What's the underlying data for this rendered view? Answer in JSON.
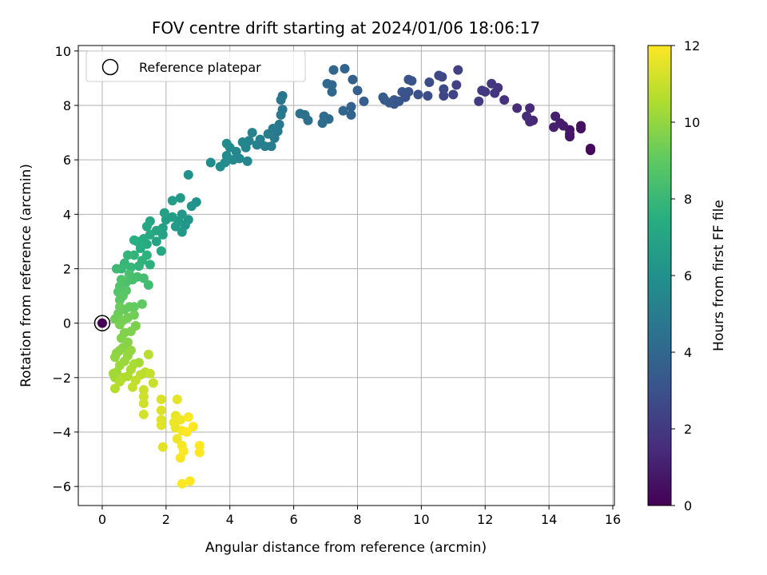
{
  "chart_data": {
    "type": "scatter",
    "title": "FOV centre drift starting at 2024/01/06 18:06:17",
    "xlabel": "Angular distance from reference (arcmin)",
    "ylabel": "Rotation from reference (arcmin)",
    "xlim": [
      -0.75,
      16.05
    ],
    "ylim": [
      -6.7,
      10.2
    ],
    "xticks": [
      0,
      2,
      4,
      6,
      8,
      10,
      12,
      14,
      16
    ],
    "yticks": [
      -6,
      -4,
      -2,
      0,
      2,
      4,
      6,
      8,
      10
    ],
    "grid": true,
    "legend": {
      "placement": "top-left",
      "entries": [
        "Reference platepar"
      ]
    },
    "reference_point": {
      "x": 0,
      "y": 0
    },
    "colorbar": {
      "label": "Hours from first FF file",
      "min": 0,
      "max": 12,
      "ticks": [
        0,
        2,
        4,
        6,
        8,
        10,
        12
      ],
      "colormap": "viridis"
    },
    "points": [
      {
        "x": 0,
        "y": 0,
        "c": 0
      },
      {
        "x": 15.3,
        "y": 6.35,
        "c": 0.2
      },
      {
        "x": 15.3,
        "y": 6.42,
        "c": 0.25
      },
      {
        "x": 15.0,
        "y": 7.25,
        "c": 0.45
      },
      {
        "x": 15.0,
        "y": 7.15,
        "c": 0.5
      },
      {
        "x": 14.65,
        "y": 7.1,
        "c": 0.6
      },
      {
        "x": 14.65,
        "y": 6.85,
        "c": 0.7
      },
      {
        "x": 14.65,
        "y": 6.95,
        "c": 0.75
      },
      {
        "x": 14.45,
        "y": 7.25,
        "c": 0.85
      },
      {
        "x": 14.35,
        "y": 7.35,
        "c": 0.9
      },
      {
        "x": 14.2,
        "y": 7.6,
        "c": 1.0
      },
      {
        "x": 14.15,
        "y": 7.2,
        "c": 1.05
      },
      {
        "x": 13.5,
        "y": 7.45,
        "c": 1.3
      },
      {
        "x": 13.4,
        "y": 7.9,
        "c": 1.35
      },
      {
        "x": 13.4,
        "y": 7.4,
        "c": 1.4
      },
      {
        "x": 13.3,
        "y": 7.6,
        "c": 1.45
      },
      {
        "x": 13.0,
        "y": 7.9,
        "c": 1.55
      },
      {
        "x": 12.6,
        "y": 8.2,
        "c": 1.7
      },
      {
        "x": 12.4,
        "y": 8.65,
        "c": 1.8
      },
      {
        "x": 12.3,
        "y": 8.45,
        "c": 1.85
      },
      {
        "x": 12.2,
        "y": 8.8,
        "c": 1.9
      },
      {
        "x": 12.0,
        "y": 8.5,
        "c": 2.0
      },
      {
        "x": 11.9,
        "y": 8.55,
        "c": 2.05
      },
      {
        "x": 11.8,
        "y": 8.15,
        "c": 2.1
      },
      {
        "x": 11.15,
        "y": 9.3,
        "c": 2.3
      },
      {
        "x": 11.1,
        "y": 8.75,
        "c": 2.35
      },
      {
        "x": 11.0,
        "y": 8.4,
        "c": 2.4
      },
      {
        "x": 10.7,
        "y": 8.35,
        "c": 2.5
      },
      {
        "x": 10.65,
        "y": 9.05,
        "c": 2.55
      },
      {
        "x": 10.55,
        "y": 9.1,
        "c": 2.6
      },
      {
        "x": 10.7,
        "y": 8.6,
        "c": 2.65
      },
      {
        "x": 10.25,
        "y": 8.85,
        "c": 2.75
      },
      {
        "x": 10.2,
        "y": 8.35,
        "c": 2.8
      },
      {
        "x": 9.9,
        "y": 8.4,
        "c": 2.9
      },
      {
        "x": 9.7,
        "y": 8.9,
        "c": 2.95
      },
      {
        "x": 9.6,
        "y": 8.95,
        "c": 3.0
      },
      {
        "x": 9.6,
        "y": 8.5,
        "c": 3.05
      },
      {
        "x": 9.5,
        "y": 8.3,
        "c": 3.1
      },
      {
        "x": 9.4,
        "y": 8.5,
        "c": 3.15
      },
      {
        "x": 9.3,
        "y": 8.15,
        "c": 3.2
      },
      {
        "x": 9.15,
        "y": 8.2,
        "c": 3.25
      },
      {
        "x": 9.15,
        "y": 8.05,
        "c": 3.3
      },
      {
        "x": 9.0,
        "y": 8.1,
        "c": 3.35
      },
      {
        "x": 8.85,
        "y": 8.2,
        "c": 3.4
      },
      {
        "x": 8.8,
        "y": 8.3,
        "c": 3.45
      },
      {
        "x": 8.2,
        "y": 8.15,
        "c": 3.6
      },
      {
        "x": 8.0,
        "y": 8.55,
        "c": 3.65
      },
      {
        "x": 7.85,
        "y": 8.95,
        "c": 3.7
      },
      {
        "x": 7.8,
        "y": 7.95,
        "c": 3.75
      },
      {
        "x": 7.8,
        "y": 7.65,
        "c": 3.8
      },
      {
        "x": 7.6,
        "y": 9.35,
        "c": 3.85
      },
      {
        "x": 7.55,
        "y": 7.8,
        "c": 3.9
      },
      {
        "x": 7.25,
        "y": 9.3,
        "c": 3.95
      },
      {
        "x": 7.2,
        "y": 8.5,
        "c": 4.0
      },
      {
        "x": 7.2,
        "y": 8.75,
        "c": 4.05
      },
      {
        "x": 7.05,
        "y": 8.8,
        "c": 4.1
      },
      {
        "x": 7.1,
        "y": 7.5,
        "c": 4.15
      },
      {
        "x": 6.95,
        "y": 7.6,
        "c": 4.2
      },
      {
        "x": 6.9,
        "y": 7.35,
        "c": 4.25
      },
      {
        "x": 6.45,
        "y": 7.45,
        "c": 4.35
      },
      {
        "x": 6.35,
        "y": 7.65,
        "c": 4.4
      },
      {
        "x": 6.2,
        "y": 7.7,
        "c": 4.45
      },
      {
        "x": 5.65,
        "y": 8.35,
        "c": 4.6
      },
      {
        "x": 5.6,
        "y": 8.2,
        "c": 4.65
      },
      {
        "x": 5.65,
        "y": 7.85,
        "c": 4.7
      },
      {
        "x": 5.6,
        "y": 7.65,
        "c": 4.75
      },
      {
        "x": 5.55,
        "y": 7.3,
        "c": 4.8
      },
      {
        "x": 5.5,
        "y": 7.05,
        "c": 4.85
      },
      {
        "x": 5.4,
        "y": 6.8,
        "c": 4.9
      },
      {
        "x": 5.35,
        "y": 7.15,
        "c": 4.95
      },
      {
        "x": 5.3,
        "y": 6.5,
        "c": 5.0
      },
      {
        "x": 5.2,
        "y": 6.95,
        "c": 5.05
      },
      {
        "x": 5.1,
        "y": 6.5,
        "c": 5.1
      },
      {
        "x": 4.95,
        "y": 6.75,
        "c": 5.15
      },
      {
        "x": 4.85,
        "y": 6.55,
        "c": 5.2
      },
      {
        "x": 4.7,
        "y": 7.0,
        "c": 5.25
      },
      {
        "x": 4.6,
        "y": 6.7,
        "c": 5.3
      },
      {
        "x": 4.5,
        "y": 6.45,
        "c": 5.35
      },
      {
        "x": 4.4,
        "y": 6.65,
        "c": 5.4
      },
      {
        "x": 4.3,
        "y": 6.05,
        "c": 5.45
      },
      {
        "x": 4.2,
        "y": 6.3,
        "c": 5.5
      },
      {
        "x": 4.1,
        "y": 6.0,
        "c": 5.55
      },
      {
        "x": 4.0,
        "y": 6.45,
        "c": 5.6
      },
      {
        "x": 3.9,
        "y": 6.6,
        "c": 5.65
      },
      {
        "x": 3.9,
        "y": 6.15,
        "c": 5.7
      },
      {
        "x": 3.85,
        "y": 5.9,
        "c": 5.75
      },
      {
        "x": 3.7,
        "y": 5.75,
        "c": 5.8
      },
      {
        "x": 3.4,
        "y": 5.9,
        "c": 5.85
      },
      {
        "x": 4.55,
        "y": 5.95,
        "c": 5.5
      },
      {
        "x": 2.7,
        "y": 5.45,
        "c": 6.0
      },
      {
        "x": 2.95,
        "y": 4.45,
        "c": 6.1
      },
      {
        "x": 2.8,
        "y": 4.3,
        "c": 6.15
      },
      {
        "x": 2.7,
        "y": 3.8,
        "c": 6.2
      },
      {
        "x": 2.6,
        "y": 3.6,
        "c": 6.25
      },
      {
        "x": 2.5,
        "y": 4.0,
        "c": 6.3
      },
      {
        "x": 2.5,
        "y": 3.35,
        "c": 6.35
      },
      {
        "x": 2.45,
        "y": 4.6,
        "c": 6.4
      },
      {
        "x": 2.4,
        "y": 3.75,
        "c": 6.45
      },
      {
        "x": 2.3,
        "y": 3.55,
        "c": 6.5
      },
      {
        "x": 2.2,
        "y": 4.5,
        "c": 6.55
      },
      {
        "x": 2.2,
        "y": 3.9,
        "c": 6.6
      },
      {
        "x": 2.0,
        "y": 3.8,
        "c": 6.7
      },
      {
        "x": 1.95,
        "y": 4.05,
        "c": 6.75
      },
      {
        "x": 1.9,
        "y": 3.5,
        "c": 6.8
      },
      {
        "x": 1.9,
        "y": 3.25,
        "c": 6.85
      },
      {
        "x": 1.7,
        "y": 3.0,
        "c": 6.95
      },
      {
        "x": 1.7,
        "y": 3.4,
        "c": 7.0
      },
      {
        "x": 1.5,
        "y": 3.75,
        "c": 7.05
      },
      {
        "x": 1.4,
        "y": 3.55,
        "c": 7.1
      },
      {
        "x": 1.85,
        "y": 2.65,
        "c": 7.2
      },
      {
        "x": 1.5,
        "y": 3.25,
        "c": 7.25
      },
      {
        "x": 1.4,
        "y": 2.9,
        "c": 7.3
      },
      {
        "x": 1.3,
        "y": 3.1,
        "c": 7.35
      },
      {
        "x": 1.2,
        "y": 2.75,
        "c": 7.4
      },
      {
        "x": 1.1,
        "y": 3.0,
        "c": 7.45
      },
      {
        "x": 1.0,
        "y": 3.05,
        "c": 7.5
      },
      {
        "x": 1.5,
        "y": 2.15,
        "c": 7.6
      },
      {
        "x": 1.4,
        "y": 2.5,
        "c": 7.65
      },
      {
        "x": 1.25,
        "y": 2.3,
        "c": 7.7
      },
      {
        "x": 1.15,
        "y": 2.1,
        "c": 7.75
      },
      {
        "x": 1.0,
        "y": 2.5,
        "c": 7.8
      },
      {
        "x": 0.8,
        "y": 2.5,
        "c": 7.85
      },
      {
        "x": 0.9,
        "y": 2.05,
        "c": 7.9
      },
      {
        "x": 0.7,
        "y": 2.2,
        "c": 7.95
      },
      {
        "x": 0.6,
        "y": 2.0,
        "c": 8.0
      },
      {
        "x": 0.45,
        "y": 2.0,
        "c": 8.1
      },
      {
        "x": 1.45,
        "y": 1.4,
        "c": 8.2
      },
      {
        "x": 1.3,
        "y": 1.65,
        "c": 8.3
      },
      {
        "x": 1.1,
        "y": 1.7,
        "c": 8.35
      },
      {
        "x": 0.95,
        "y": 1.6,
        "c": 8.4
      },
      {
        "x": 0.85,
        "y": 1.8,
        "c": 8.45
      },
      {
        "x": 0.75,
        "y": 1.5,
        "c": 8.5
      },
      {
        "x": 0.6,
        "y": 1.6,
        "c": 8.6
      },
      {
        "x": 0.55,
        "y": 1.35,
        "c": 8.65
      },
      {
        "x": 0.5,
        "y": 1.15,
        "c": 8.7
      },
      {
        "x": 0.75,
        "y": 1.2,
        "c": 8.75
      },
      {
        "x": 0.65,
        "y": 1.0,
        "c": 8.85
      },
      {
        "x": 0.55,
        "y": 0.85,
        "c": 8.9
      },
      {
        "x": 1.25,
        "y": 0.7,
        "c": 9.0
      },
      {
        "x": 1.0,
        "y": 0.6,
        "c": 9.05
      },
      {
        "x": 0.85,
        "y": 0.6,
        "c": 9.1
      },
      {
        "x": 0.7,
        "y": 0.5,
        "c": 9.15
      },
      {
        "x": 0.55,
        "y": 0.6,
        "c": 9.2
      },
      {
        "x": 0.5,
        "y": 0.35,
        "c": 9.25
      },
      {
        "x": 0.4,
        "y": 0.15,
        "c": 9.3
      },
      {
        "x": 1.0,
        "y": 0.3,
        "c": 9.35
      },
      {
        "x": 0.8,
        "y": 0.2,
        "c": 9.4
      },
      {
        "x": 0.65,
        "y": 0.1,
        "c": 9.45
      },
      {
        "x": 0.55,
        "y": -0.05,
        "c": 9.5
      },
      {
        "x": 1.05,
        "y": -0.1,
        "c": 9.55
      },
      {
        "x": 0.9,
        "y": -0.3,
        "c": 9.6
      },
      {
        "x": 0.7,
        "y": -0.35,
        "c": 9.65
      },
      {
        "x": 0.6,
        "y": -0.55,
        "c": 9.7
      },
      {
        "x": 0.8,
        "y": -0.7,
        "c": 9.75
      },
      {
        "x": 0.65,
        "y": -0.9,
        "c": 9.8
      },
      {
        "x": 0.55,
        "y": -1.0,
        "c": 9.85
      },
      {
        "x": 0.45,
        "y": -1.1,
        "c": 9.9
      },
      {
        "x": 0.4,
        "y": -1.25,
        "c": 9.95
      },
      {
        "x": 0.9,
        "y": -1.0,
        "c": 10.0
      },
      {
        "x": 0.8,
        "y": -1.2,
        "c": 10.05
      },
      {
        "x": 0.7,
        "y": -1.4,
        "c": 10.1
      },
      {
        "x": 0.55,
        "y": -1.55,
        "c": 10.15
      },
      {
        "x": 0.45,
        "y": -1.8,
        "c": 10.2
      },
      {
        "x": 0.4,
        "y": -2.0,
        "c": 10.25
      },
      {
        "x": 0.35,
        "y": -1.85,
        "c": 10.3
      },
      {
        "x": 1.15,
        "y": -1.45,
        "c": 10.35
      },
      {
        "x": 1.0,
        "y": -1.5,
        "c": 10.4
      },
      {
        "x": 0.9,
        "y": -1.7,
        "c": 10.45
      },
      {
        "x": 0.8,
        "y": -1.95,
        "c": 10.5
      },
      {
        "x": 0.65,
        "y": -2.0,
        "c": 10.55
      },
      {
        "x": 0.55,
        "y": -2.15,
        "c": 10.6
      },
      {
        "x": 0.4,
        "y": -2.4,
        "c": 10.65
      },
      {
        "x": 1.45,
        "y": -1.15,
        "c": 10.7
      },
      {
        "x": 1.35,
        "y": -1.8,
        "c": 10.75
      },
      {
        "x": 1.2,
        "y": -1.9,
        "c": 10.8
      },
      {
        "x": 1.05,
        "y": -2.1,
        "c": 10.85
      },
      {
        "x": 0.95,
        "y": -2.35,
        "c": 10.9
      },
      {
        "x": 1.5,
        "y": -1.85,
        "c": 10.95
      },
      {
        "x": 1.6,
        "y": -2.2,
        "c": 11.0
      },
      {
        "x": 1.3,
        "y": -2.45,
        "c": 11.05
      },
      {
        "x": 1.3,
        "y": -2.7,
        "c": 11.1
      },
      {
        "x": 1.3,
        "y": -2.95,
        "c": 11.15
      },
      {
        "x": 1.3,
        "y": -3.35,
        "c": 11.2
      },
      {
        "x": 1.85,
        "y": -2.8,
        "c": 11.3
      },
      {
        "x": 1.85,
        "y": -3.2,
        "c": 11.35
      },
      {
        "x": 1.85,
        "y": -3.55,
        "c": 11.4
      },
      {
        "x": 1.85,
        "y": -3.75,
        "c": 11.45
      },
      {
        "x": 1.9,
        "y": -4.55,
        "c": 11.5
      },
      {
        "x": 2.35,
        "y": -2.8,
        "c": 11.55
      },
      {
        "x": 2.3,
        "y": -3.4,
        "c": 11.6
      },
      {
        "x": 2.3,
        "y": -3.85,
        "c": 11.65
      },
      {
        "x": 2.35,
        "y": -4.25,
        "c": 11.7
      },
      {
        "x": 2.45,
        "y": -3.55,
        "c": 11.75
      },
      {
        "x": 2.5,
        "y": -3.95,
        "c": 11.8
      },
      {
        "x": 2.5,
        "y": -4.5,
        "c": 11.85
      },
      {
        "x": 2.45,
        "y": -4.95,
        "c": 11.9
      },
      {
        "x": 2.7,
        "y": -3.45,
        "c": 11.95
      },
      {
        "x": 2.65,
        "y": -4.0,
        "c": 12.0
      },
      {
        "x": 2.85,
        "y": -3.8,
        "c": 12.0
      },
      {
        "x": 3.05,
        "y": -4.5,
        "c": 12.0
      },
      {
        "x": 3.05,
        "y": -4.75,
        "c": 12.0
      },
      {
        "x": 2.55,
        "y": -4.7,
        "c": 11.95
      },
      {
        "x": 2.25,
        "y": -3.65,
        "c": 11.7
      },
      {
        "x": 2.5,
        "y": -5.9,
        "c": 12.0
      },
      {
        "x": 2.75,
        "y": -5.8,
        "c": 12.0
      }
    ]
  }
}
